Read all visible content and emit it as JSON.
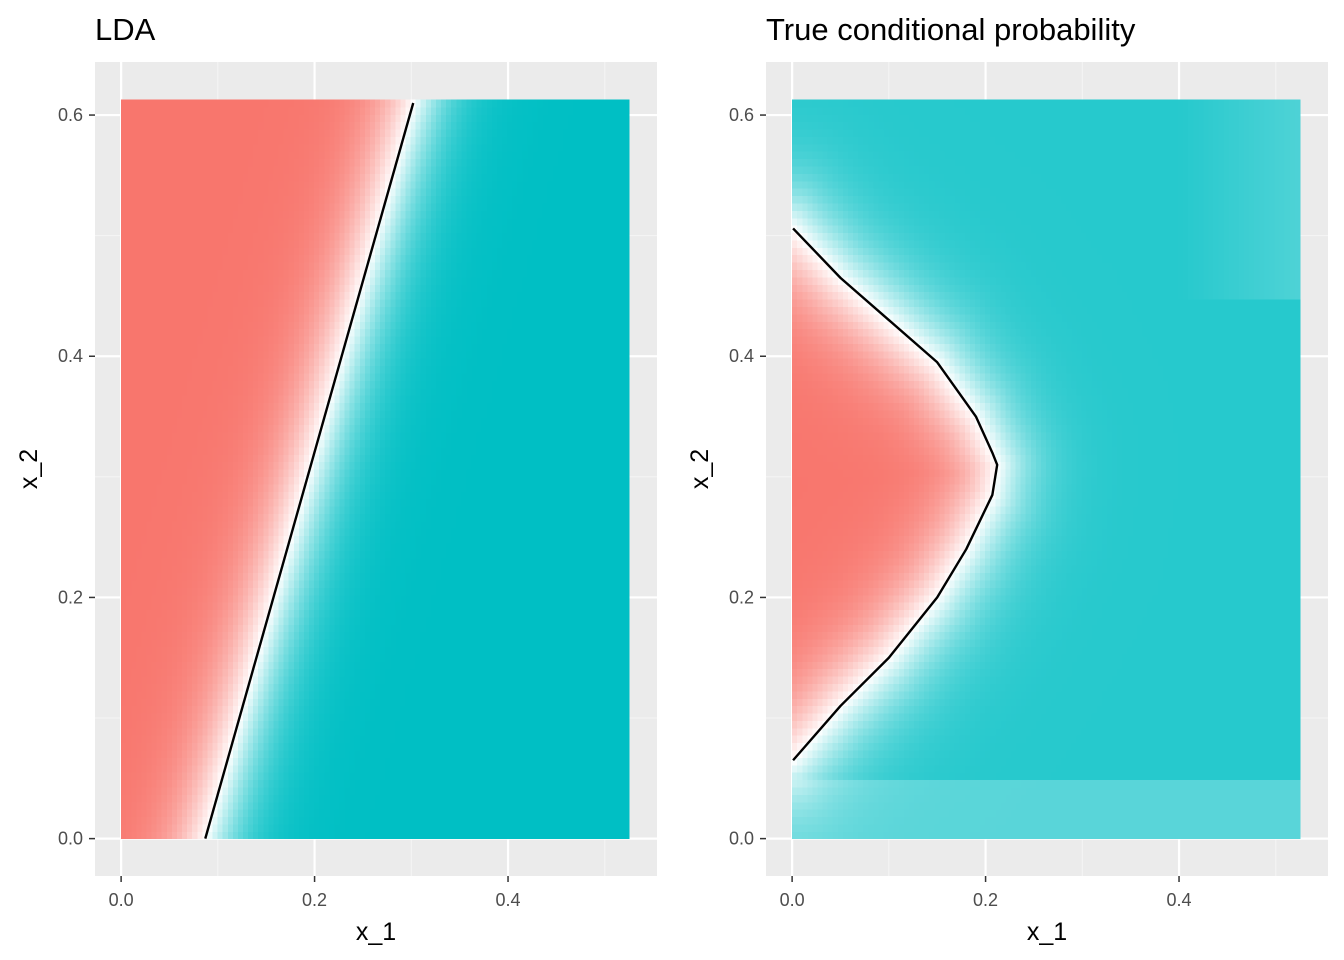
{
  "chart_data": [
    {
      "type": "heatmap",
      "title": "LDA",
      "xlabel": "x_1",
      "ylabel": "x_2",
      "xlim": [
        -0.027,
        0.554
      ],
      "ylim": [
        -0.031,
        0.644
      ],
      "x_ticks": [
        {
          "value": 0.0,
          "label": "0.0"
        },
        {
          "value": 0.2,
          "label": "0.2"
        },
        {
          "value": 0.4,
          "label": "0.4"
        }
      ],
      "y_ticks": [
        {
          "value": 0.0,
          "label": "0.0"
        },
        {
          "value": 0.2,
          "label": "0.2"
        },
        {
          "value": 0.4,
          "label": "0.4"
        },
        {
          "value": 0.6,
          "label": "0.6"
        }
      ],
      "fill_extent": {
        "x": [
          0.0,
          0.525
        ],
        "y": [
          0.0,
          0.613
        ]
      },
      "decision_boundary": {
        "x": [
          0.087,
          0.302
        ],
        "y": [
          0.0,
          0.61
        ]
      },
      "grid": true,
      "colors": {
        "low": "#F8766D",
        "mid": "#FFFFFF",
        "high": "#00BFC4"
      }
    },
    {
      "type": "heatmap",
      "title": "True conditional probability",
      "xlabel": "x_1",
      "ylabel": "x_2",
      "xlim": [
        -0.027,
        0.554
      ],
      "ylim": [
        -0.031,
        0.644
      ],
      "x_ticks": [
        {
          "value": 0.0,
          "label": "0.0"
        },
        {
          "value": 0.2,
          "label": "0.2"
        },
        {
          "value": 0.4,
          "label": "0.4"
        }
      ],
      "y_ticks": [
        {
          "value": 0.0,
          "label": "0.0"
        },
        {
          "value": 0.2,
          "label": "0.2"
        },
        {
          "value": 0.4,
          "label": "0.4"
        },
        {
          "value": 0.6,
          "label": "0.6"
        }
      ],
      "fill_extent": {
        "x": [
          0.0,
          0.525
        ],
        "y": [
          0.0,
          0.613
        ]
      },
      "decision_boundary": {
        "x": [
          0.001,
          0.05,
          0.1,
          0.15,
          0.19,
          0.207,
          0.212,
          0.207,
          0.18,
          0.15,
          0.1,
          0.05,
          0.001
        ],
        "y": [
          0.506,
          0.465,
          0.43,
          0.395,
          0.35,
          0.32,
          0.31,
          0.285,
          0.24,
          0.2,
          0.15,
          0.11,
          0.065
        ]
      },
      "grid": true,
      "colors": {
        "low": "#F8766D",
        "mid": "#FFFFFF",
        "high": "#00BFC4"
      }
    }
  ]
}
